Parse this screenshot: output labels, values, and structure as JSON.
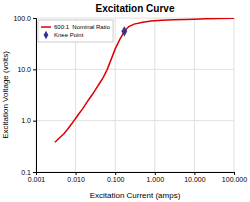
{
  "chart_data": {
    "type": "line",
    "title": "Excitation Curve",
    "xlabel": "Excitation Current (amps)",
    "ylabel": "Excitation Voltage (volts)",
    "log": true,
    "grid": true,
    "legend": "upper left",
    "xlim": [
      0.001,
      100.0
    ],
    "ylim": [
      0.1,
      100.0
    ],
    "xticks": [
      0.001,
      {
        "value": 0.01,
        "label": "0.010"
      },
      {
        "value": 0.1,
        "label": "0.100"
      },
      {
        "value": 1.0,
        "label": "1.000"
      },
      {
        "value": 10.0,
        "label": "10.000"
      },
      {
        "value": 100.0,
        "label": "100.000"
      }
    ],
    "yticks": [
      0.1,
      {
        "value": 1.0,
        "label": "1.0"
      },
      {
        "value": 10.0,
        "label": "10.0"
      },
      {
        "value": 100.0,
        "label": "100.0"
      }
    ],
    "series": [
      {
        "name": "600:1  Nominal Ratio",
        "type": "line",
        "color": "#dd0000",
        "x": [
          0.003,
          0.004,
          0.005,
          0.006,
          0.007,
          0.008,
          0.009,
          0.01,
          0.012,
          0.015,
          0.018,
          0.022,
          0.027,
          0.033,
          0.04,
          0.05,
          0.063,
          0.08,
          0.1,
          0.13,
          0.17,
          0.22,
          0.3,
          0.5,
          0.8,
          1.5,
          3.0,
          6.0,
          10.0,
          20.0,
          40.0,
          80.0,
          100.0
        ],
        "values": [
          0.38,
          0.47,
          0.55,
          0.65,
          0.76,
          0.87,
          0.99,
          1.1,
          1.35,
          1.7,
          2.1,
          2.65,
          3.3,
          4.2,
          5.3,
          7.0,
          10.0,
          16.0,
          25.0,
          38.0,
          55.0,
          68.0,
          76.0,
          83.0,
          87.0,
          90.0,
          92.0,
          94.0,
          95.0,
          96.5,
          97.5,
          98.5,
          99.0
        ]
      },
      {
        "name": "Knee Point",
        "type": "scatter",
        "marker": "diamond",
        "color": "#333399",
        "x": [
          0.17
        ],
        "values": [
          55.0
        ]
      }
    ]
  }
}
